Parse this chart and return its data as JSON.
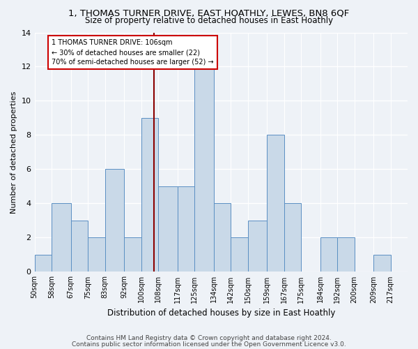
{
  "title": "1, THOMAS TURNER DRIVE, EAST HOATHLY, LEWES, BN8 6QF",
  "subtitle": "Size of property relative to detached houses in East Hoathly",
  "xlabel": "Distribution of detached houses by size in East Hoathly",
  "ylabel": "Number of detached properties",
  "footnote1": "Contains HM Land Registry data © Crown copyright and database right 2024.",
  "footnote2": "Contains public sector information licensed under the Open Government Licence v3.0.",
  "bin_labels": [
    "50sqm",
    "58sqm",
    "67sqm",
    "75sqm",
    "83sqm",
    "92sqm",
    "100sqm",
    "108sqm",
    "117sqm",
    "125sqm",
    "134sqm",
    "142sqm",
    "150sqm",
    "159sqm",
    "167sqm",
    "175sqm",
    "184sqm",
    "192sqm",
    "200sqm",
    "209sqm",
    "217sqm"
  ],
  "bar_values": [
    1,
    4,
    3,
    2,
    6,
    2,
    9,
    5,
    5,
    12,
    4,
    2,
    3,
    8,
    4,
    0,
    2,
    2,
    0,
    1,
    0
  ],
  "bar_color": "#c9d9e8",
  "bar_edge_color": "#5a8fc3",
  "vline_x": 106,
  "vline_color": "#8b0000",
  "annotation_text_line1": "1 THOMAS TURNER DRIVE: 106sqm",
  "annotation_text_line2": "← 30% of detached houses are smaller (22)",
  "annotation_text_line3": "70% of semi-detached houses are larger (52) →",
  "annotation_box_facecolor": "#ffffff",
  "annotation_box_edgecolor": "#cc0000",
  "ylim": [
    0,
    14
  ],
  "yticks": [
    0,
    2,
    4,
    6,
    8,
    10,
    12,
    14
  ],
  "bin_edges": [
    50,
    58,
    67,
    75,
    83,
    92,
    100,
    108,
    117,
    125,
    134,
    142,
    150,
    159,
    167,
    175,
    184,
    192,
    200,
    209,
    217,
    225
  ],
  "background_color": "#eef2f7",
  "grid_color": "#ffffff",
  "title_fontsize": 9.5,
  "subtitle_fontsize": 8.5,
  "ylabel_fontsize": 8,
  "xlabel_fontsize": 8.5,
  "tick_fontsize": 7,
  "footnote_fontsize": 6.5
}
